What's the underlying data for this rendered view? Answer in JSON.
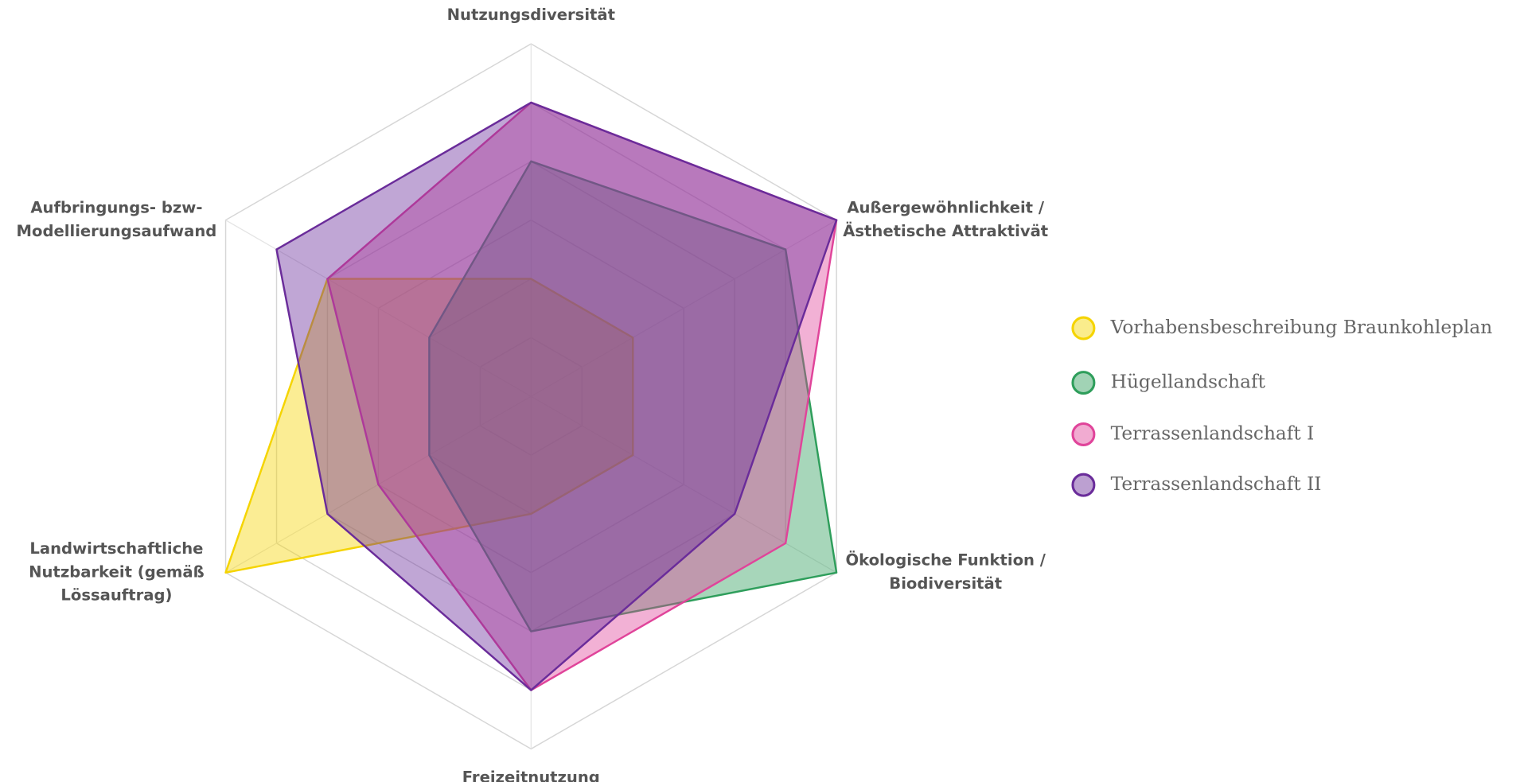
{
  "chart_data": {
    "type": "radar",
    "categories": [
      "Nutzungsdiversität",
      "Außergewöhnlichkeit /\nÄsthetische Attraktivät",
      "Ökologische Funktion /\nBiodiversität",
      "Freizeitnutzung",
      "Landwirtschaftliche\nNutzbarkeit (gemäß\nLössauftrag)",
      "Aufbringungs- bzw-\nModellierungsaufwand"
    ],
    "rlim": [
      0,
      6
    ],
    "rticks": [
      1,
      2,
      3,
      4,
      5,
      6
    ],
    "grid": true,
    "legend": "right",
    "series": [
      {
        "name": "Vorhabensbeschreibung Braunkohleplan",
        "color": "#f5d400",
        "values": [
          2,
          2,
          2,
          2,
          6,
          4
        ]
      },
      {
        "name": "Hügellandschaft",
        "color": "#2e9e5b",
        "values": [
          4,
          5,
          6,
          4,
          2,
          2
        ]
      },
      {
        "name": "Terrassenlandschaft I",
        "color": "#e0449a",
        "values": [
          5,
          6,
          5,
          5,
          3,
          4
        ]
      },
      {
        "name": "Terrassenlandschaft II",
        "color": "#6a2c9a",
        "values": [
          5,
          6,
          4,
          5,
          4,
          5
        ]
      }
    ]
  }
}
